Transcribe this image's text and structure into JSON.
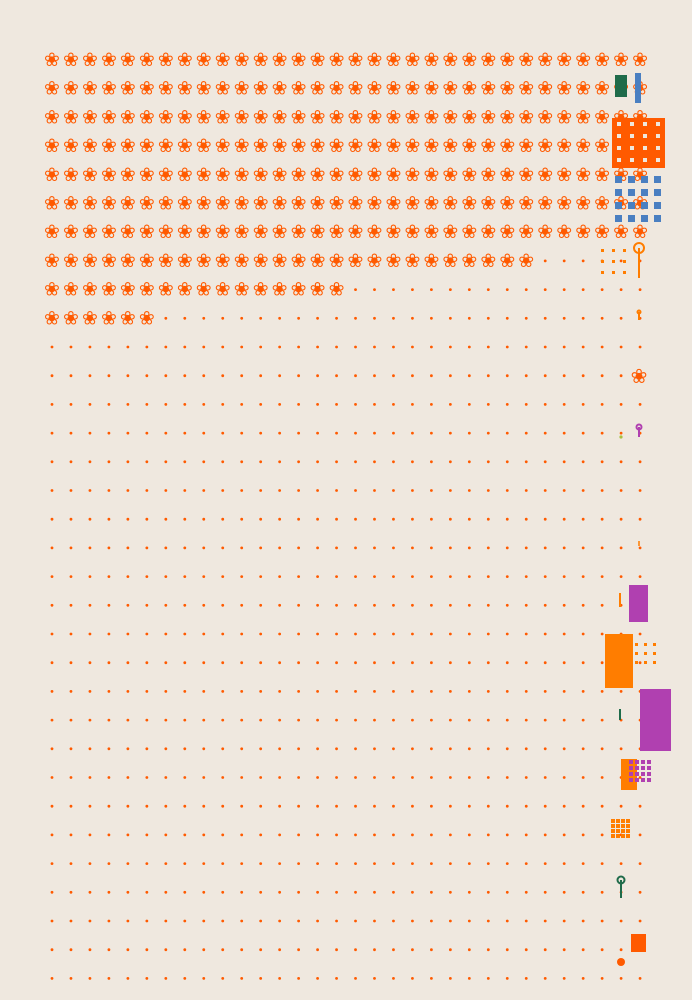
{
  "canvas": {
    "background": "#efe8df",
    "primary_color": "#ff5a00",
    "dot_color": "#ff5a00"
  },
  "flower_grid": {
    "glyph": "❀",
    "columns": 32,
    "rows": 10,
    "row_counts": [
      32,
      32,
      32,
      32,
      32,
      32,
      32,
      26,
      16,
      6
    ]
  },
  "dot_grid": {
    "columns": 32,
    "rows": 33
  },
  "palette": {
    "orange": "#ff5a00",
    "amber": "#ff7d00",
    "blue": "#4a7fc1",
    "green": "#1f6b4a",
    "purple": "#b040b0",
    "lime": "#a8c040"
  },
  "side_marks": [
    {
      "kind": "block",
      "color": "green"
    },
    {
      "kind": "block",
      "color": "blue"
    },
    {
      "kind": "block",
      "color": "orange"
    },
    {
      "kind": "dot-grid",
      "color": "blue"
    },
    {
      "kind": "pin",
      "color": "amber"
    },
    {
      "kind": "dot-grid",
      "color": "amber"
    },
    {
      "kind": "pin",
      "color": "amber"
    },
    {
      "kind": "flower",
      "color": "orange"
    },
    {
      "kind": "pin",
      "color": "purple"
    },
    {
      "kind": "block",
      "color": "purple"
    },
    {
      "kind": "block",
      "color": "amber"
    },
    {
      "kind": "dot-grid",
      "color": "amber"
    },
    {
      "kind": "block",
      "color": "purple"
    },
    {
      "kind": "block",
      "color": "amber"
    },
    {
      "kind": "dot-grid",
      "color": "purple"
    },
    {
      "kind": "dot-grid",
      "color": "amber"
    },
    {
      "kind": "pin",
      "color": "green"
    },
    {
      "kind": "block",
      "color": "orange"
    },
    {
      "kind": "dot",
      "color": "orange"
    }
  ]
}
